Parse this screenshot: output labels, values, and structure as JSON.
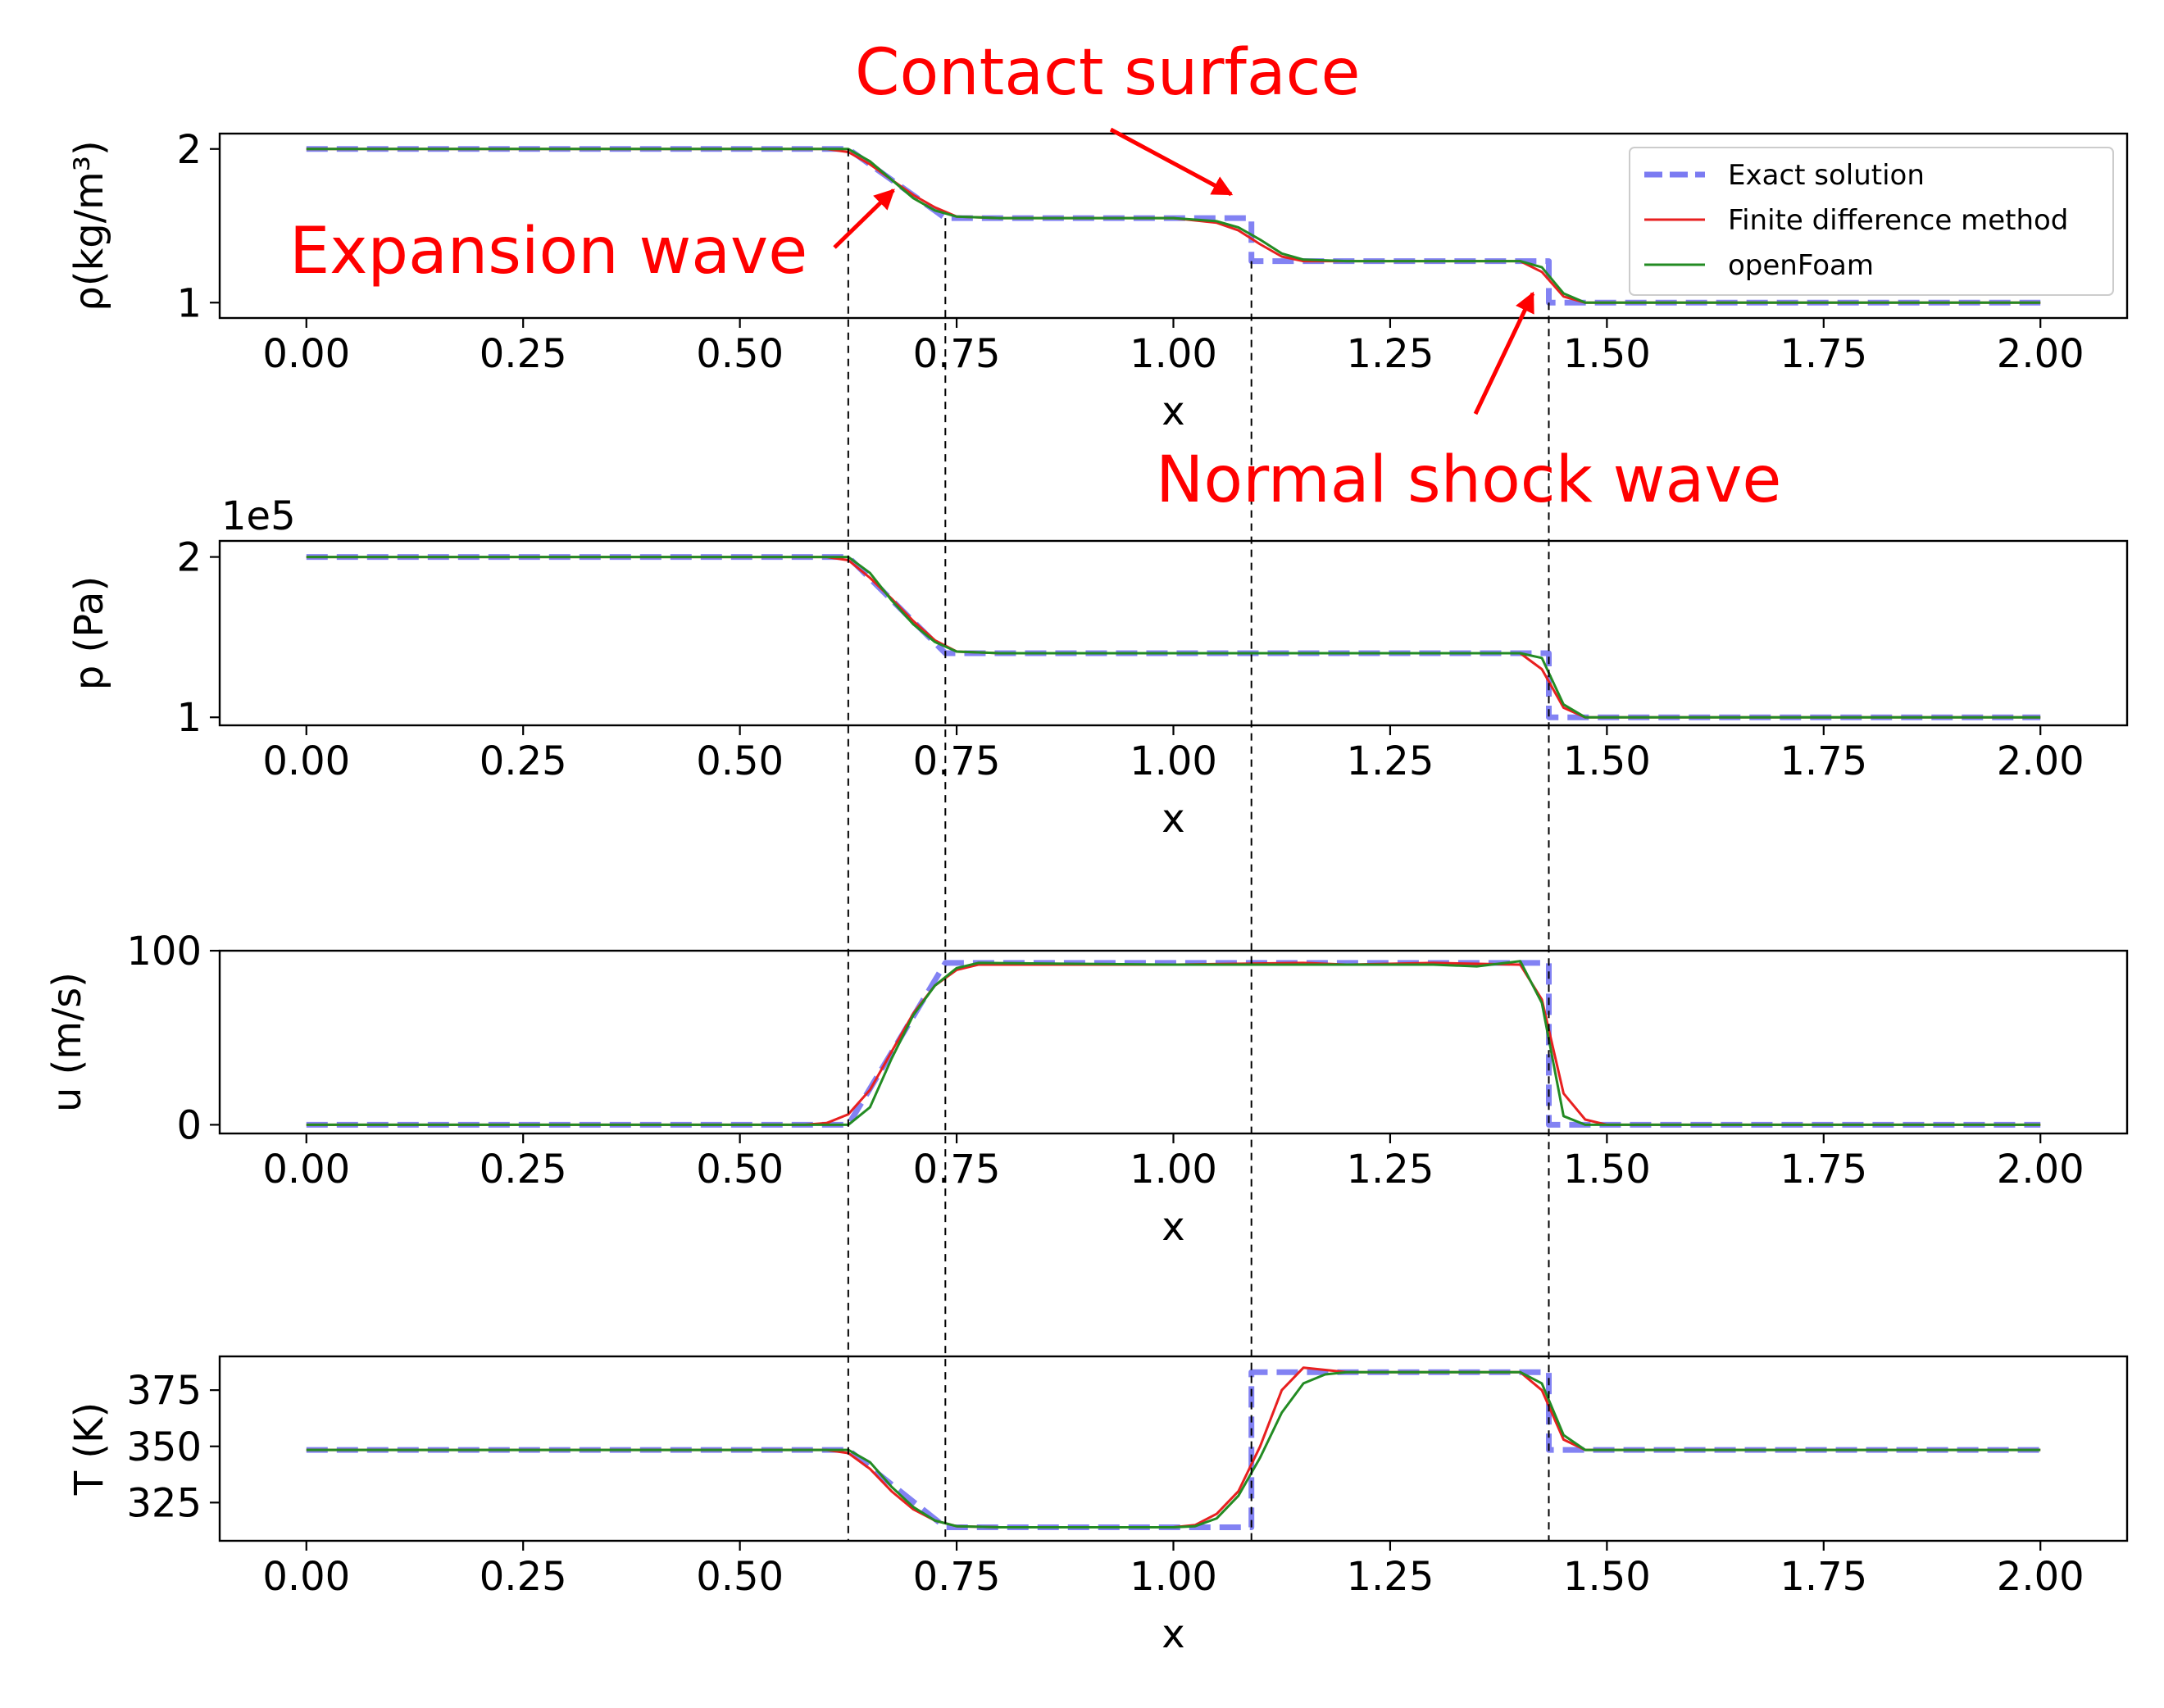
{
  "colors": {
    "exact": "#7b7bf2",
    "finite_difference": "#e82020",
    "openfoam": "#238b23",
    "annotation": "#ff0000",
    "guide": "#000000"
  },
  "legend": {
    "placement": "top-right of first panel",
    "entries": [
      "Exact solution",
      "Finite difference method",
      "openFoam"
    ]
  },
  "annotations": [
    {
      "text": "Contact surface",
      "points_to_x": 1.09
    },
    {
      "text": "Expansion wave",
      "points_to_x": 0.68
    },
    {
      "text": "Normal shock wave",
      "points_to_x": 1.42
    }
  ],
  "guide_lines_x": [
    0.625,
    0.737,
    1.09,
    1.433
  ],
  "chart_data": [
    {
      "type": "line",
      "ylabel": "ρ(kg/m³)",
      "xlabel": "x",
      "offset_text": "",
      "xlim": [
        -0.1,
        2.1
      ],
      "ylim": [
        0.9,
        2.1
      ],
      "xticks": [
        0,
        0.25,
        0.5,
        0.75,
        1.0,
        1.25,
        1.5,
        1.75,
        2.0
      ],
      "xtick_labels": [
        "0.00",
        "0.25",
        "0.50",
        "0.75",
        "1.00",
        "1.25",
        "1.50",
        "1.75",
        "2.00"
      ],
      "yticks": [
        1,
        2
      ],
      "ytick_labels": [
        "1",
        "2"
      ],
      "series": [
        {
          "name": "Exact solution",
          "style": "dashed",
          "x": [
            0,
            0.625,
            0.737,
            1.09,
            1.09,
            1.433,
            1.433,
            2.0
          ],
          "y": [
            2.0,
            2.0,
            1.55,
            1.55,
            1.27,
            1.27,
            1.0,
            1.0
          ]
        },
        {
          "name": "Finite difference method",
          "style": "solid",
          "x": [
            0,
            0.6,
            0.625,
            0.65,
            0.675,
            0.7,
            0.725,
            0.75,
            0.8,
            1.0,
            1.05,
            1.075,
            1.1,
            1.125,
            1.15,
            1.2,
            1.4,
            1.425,
            1.45,
            1.475,
            2.0
          ],
          "y": [
            2.0,
            2.0,
            1.98,
            1.9,
            1.8,
            1.7,
            1.62,
            1.56,
            1.55,
            1.55,
            1.52,
            1.47,
            1.38,
            1.3,
            1.27,
            1.27,
            1.27,
            1.2,
            1.04,
            1.0,
            1.0
          ]
        },
        {
          "name": "openFoam",
          "style": "solid",
          "x": [
            0,
            0.6,
            0.625,
            0.65,
            0.675,
            0.7,
            0.725,
            0.75,
            0.8,
            1.0,
            1.05,
            1.075,
            1.1,
            1.125,
            1.15,
            1.2,
            1.4,
            1.425,
            1.45,
            1.475,
            2.0
          ],
          "y": [
            2.0,
            2.0,
            2.0,
            1.92,
            1.8,
            1.68,
            1.6,
            1.56,
            1.55,
            1.55,
            1.53,
            1.49,
            1.41,
            1.32,
            1.28,
            1.27,
            1.27,
            1.23,
            1.06,
            1.0,
            1.0
          ]
        }
      ]
    },
    {
      "type": "line",
      "ylabel": "p (Pa)",
      "xlabel": "x",
      "offset_text": "1e5",
      "xlim": [
        -0.1,
        2.1
      ],
      "ylim": [
        0.95,
        2.1
      ],
      "xticks": [
        0,
        0.25,
        0.5,
        0.75,
        1.0,
        1.25,
        1.5,
        1.75,
        2.0
      ],
      "xtick_labels": [
        "0.00",
        "0.25",
        "0.50",
        "0.75",
        "1.00",
        "1.25",
        "1.50",
        "1.75",
        "2.00"
      ],
      "yticks": [
        1,
        2
      ],
      "ytick_labels": [
        "1",
        "2"
      ],
      "series": [
        {
          "name": "Exact solution",
          "style": "dashed",
          "x": [
            0,
            0.625,
            0.737,
            1.433,
            1.433,
            2.0
          ],
          "y": [
            2.0,
            2.0,
            1.4,
            1.4,
            1.0,
            1.0
          ]
        },
        {
          "name": "Finite difference method",
          "style": "solid",
          "x": [
            0,
            0.6,
            0.625,
            0.65,
            0.675,
            0.7,
            0.725,
            0.75,
            0.8,
            1.4,
            1.425,
            1.45,
            1.475,
            2.0
          ],
          "y": [
            2.0,
            2.0,
            1.98,
            1.87,
            1.74,
            1.6,
            1.48,
            1.41,
            1.4,
            1.4,
            1.3,
            1.06,
            1.0,
            1.0
          ]
        },
        {
          "name": "openFoam",
          "style": "solid",
          "x": [
            0,
            0.6,
            0.625,
            0.65,
            0.675,
            0.7,
            0.725,
            0.75,
            0.8,
            1.4,
            1.425,
            1.45,
            1.475,
            2.0
          ],
          "y": [
            2.0,
            2.0,
            2.0,
            1.9,
            1.73,
            1.58,
            1.47,
            1.41,
            1.4,
            1.4,
            1.37,
            1.08,
            1.0,
            1.0
          ]
        }
      ]
    },
    {
      "type": "line",
      "ylabel": "u (m/s)",
      "xlabel": "x",
      "offset_text": "",
      "xlim": [
        -0.1,
        2.1
      ],
      "ylim": [
        -5,
        100
      ],
      "xticks": [
        0,
        0.25,
        0.5,
        0.75,
        1.0,
        1.25,
        1.5,
        1.75,
        2.0
      ],
      "xtick_labels": [
        "0.00",
        "0.25",
        "0.50",
        "0.75",
        "1.00",
        "1.25",
        "1.50",
        "1.75",
        "2.00"
      ],
      "yticks": [
        0,
        100
      ],
      "ytick_labels": [
        "0",
        "100"
      ],
      "series": [
        {
          "name": "Exact solution",
          "style": "dashed",
          "x": [
            0,
            0.625,
            0.737,
            1.433,
            1.433,
            2.0
          ],
          "y": [
            0,
            0,
            93,
            93,
            0,
            0
          ]
        },
        {
          "name": "Finite difference method",
          "style": "solid",
          "x": [
            0,
            0.575,
            0.6,
            0.625,
            0.65,
            0.675,
            0.7,
            0.725,
            0.75,
            0.775,
            1.0,
            1.15,
            1.2,
            1.3,
            1.4,
            1.425,
            1.45,
            1.475,
            1.5,
            2.0
          ],
          "y": [
            0,
            0,
            1,
            6,
            20,
            42,
            64,
            80,
            89,
            92,
            92,
            93,
            92,
            93,
            92,
            72,
            18,
            3,
            0,
            0
          ]
        },
        {
          "name": "openFoam",
          "style": "solid",
          "x": [
            0,
            0.625,
            0.65,
            0.675,
            0.7,
            0.725,
            0.75,
            0.775,
            1.0,
            1.2,
            1.3,
            1.35,
            1.4,
            1.425,
            1.45,
            1.475,
            2.0
          ],
          "y": [
            0,
            0,
            10,
            38,
            63,
            80,
            90,
            93,
            92,
            92,
            92,
            91,
            94,
            70,
            5,
            0,
            0
          ]
        }
      ]
    },
    {
      "type": "line",
      "ylabel": "T (K)",
      "xlabel": "x",
      "offset_text": "",
      "xlim": [
        -0.1,
        2.1
      ],
      "ylim": [
        308,
        390
      ],
      "xticks": [
        0,
        0.25,
        0.5,
        0.75,
        1.0,
        1.25,
        1.5,
        1.75,
        2.0
      ],
      "xtick_labels": [
        "0.00",
        "0.25",
        "0.50",
        "0.75",
        "1.00",
        "1.25",
        "1.50",
        "1.75",
        "2.00"
      ],
      "yticks": [
        325,
        350,
        375
      ],
      "ytick_labels": [
        "325",
        "350",
        "375"
      ],
      "series": [
        {
          "name": "Exact solution",
          "style": "dashed",
          "x": [
            0,
            0.625,
            0.737,
            1.09,
            1.09,
            1.433,
            1.433,
            2.0
          ],
          "y": [
            348.4,
            348.4,
            314,
            314,
            383,
            383,
            348.4,
            348.4
          ]
        },
        {
          "name": "Finite difference method",
          "style": "solid",
          "x": [
            0,
            0.6,
            0.625,
            0.65,
            0.675,
            0.7,
            0.725,
            0.75,
            0.8,
            1.0,
            1.025,
            1.05,
            1.075,
            1.1,
            1.125,
            1.15,
            1.175,
            1.2,
            1.25,
            1.4,
            1.425,
            1.45,
            1.475,
            2.0
          ],
          "y": [
            348.4,
            348.4,
            347,
            340,
            330,
            322,
            317,
            314.5,
            314,
            314,
            315,
            320,
            330,
            350,
            375,
            385,
            384,
            383,
            383,
            383,
            375,
            353,
            348.4,
            348.4
          ]
        },
        {
          "name": "openFoam",
          "style": "solid",
          "x": [
            0,
            0.6,
            0.625,
            0.65,
            0.675,
            0.7,
            0.725,
            0.75,
            0.8,
            1.0,
            1.025,
            1.05,
            1.075,
            1.1,
            1.125,
            1.15,
            1.175,
            1.2,
            1.25,
            1.4,
            1.425,
            1.45,
            1.475,
            2.0
          ],
          "y": [
            348.4,
            348.4,
            348.4,
            343,
            332,
            323,
            317,
            314.5,
            314,
            314,
            314.5,
            318,
            328,
            345,
            365,
            378,
            382,
            383,
            383,
            383,
            378,
            355,
            348.4,
            348.4
          ]
        }
      ]
    }
  ]
}
